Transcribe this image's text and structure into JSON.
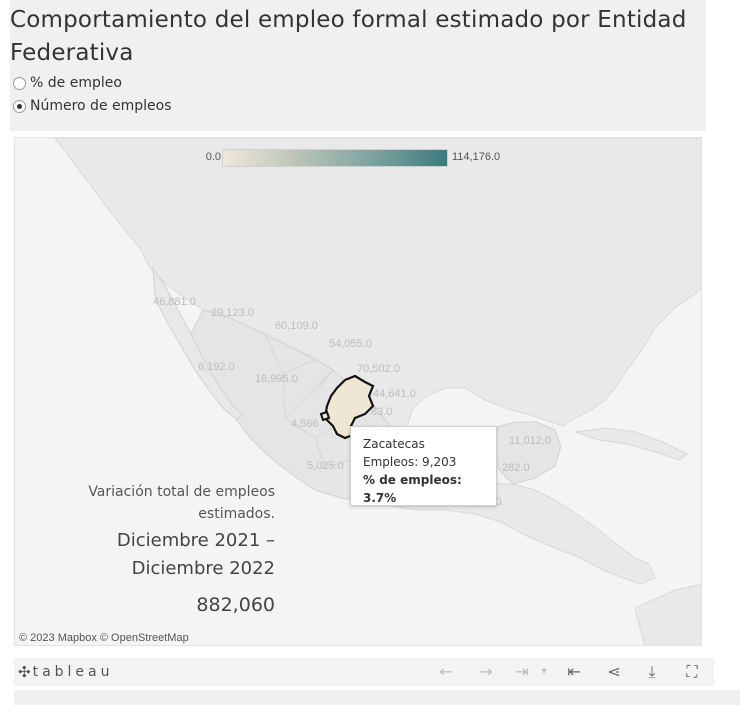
{
  "header": {
    "title": "Comportamiento del empleo formal estimado por Entidad Federativa",
    "options": [
      {
        "label": "% de empleo",
        "selected": false
      },
      {
        "label": "Número de empleos",
        "selected": true
      }
    ]
  },
  "legend": {
    "min_label": "0.0",
    "max_label": "114,176.0",
    "colors": [
      "#efe9da",
      "#b9c4b7",
      "#7ea39f",
      "#3d7b7d"
    ]
  },
  "map": {
    "region_labels": [
      "46,881.0",
      "29,123.0",
      "60,109.0",
      "54,055.0",
      "6,192.0",
      "16,995.0",
      "70,502.0",
      "44,641.0",
      "4,566",
      "83.0",
      "5,025.0",
      "11,012.0",
      "282.0",
      "6,600.0"
    ],
    "highlighted_state": "Zacatecas",
    "highlight_color": "#efe6d3",
    "attribution": "© 2023 Mapbox  © OpenStreetMap"
  },
  "tooltip": {
    "state": "Zacatecas",
    "empleos": "Empleos: 9,203",
    "pct": "% de empleos: 3.7%"
  },
  "summary": {
    "title": "Variación total de empleos estimados.",
    "period": "Diciembre 2021 – Diciembre 2022",
    "value": "882,060"
  },
  "toolbar": {
    "brand": "tableau",
    "buttons": [
      "undo-icon",
      "redo-icon",
      "revert-icon",
      "dropdown-icon",
      "reset-icon",
      "share-icon",
      "download-icon",
      "fullscreen-icon"
    ]
  }
}
